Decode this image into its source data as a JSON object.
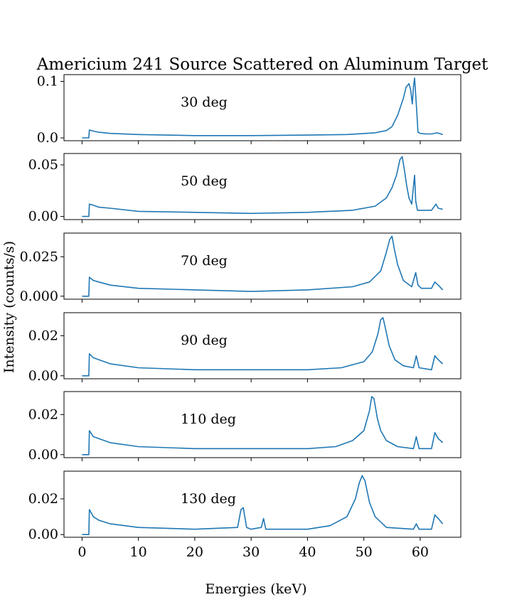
{
  "figure": {
    "title": "Americium 241 Source Scattered on Aluminum Target",
    "xlabel": "Energies (keV)",
    "ylabel": "Intensity (counts/s)",
    "line_color": "#1f77b4"
  },
  "chart_data": [
    {
      "type": "line",
      "annotation": "30 deg",
      "xlim": [
        -3.2,
        67.2
      ],
      "ylim": [
        -0.005,
        0.112
      ],
      "xticks": [
        0,
        10,
        20,
        30,
        40,
        50,
        60
      ],
      "yticks": [
        0.0,
        0.1
      ],
      "ytick_labels": [
        "0.0",
        "0.1"
      ],
      "show_xtick_labels": false,
      "x": [
        0,
        1.2,
        1.3,
        2,
        3,
        5,
        10,
        20,
        30,
        40,
        47,
        52,
        54,
        55,
        56,
        57,
        57.5,
        58,
        58.3,
        58.6,
        58.8,
        59.0,
        59.3,
        59.6,
        60,
        61,
        62,
        63,
        64
      ],
      "y": [
        0,
        0,
        0.014,
        0.012,
        0.01,
        0.008,
        0.006,
        0.004,
        0.004,
        0.005,
        0.006,
        0.009,
        0.013,
        0.02,
        0.04,
        0.07,
        0.09,
        0.096,
        0.085,
        0.06,
        0.09,
        0.106,
        0.06,
        0.01,
        0.008,
        0.007,
        0.007,
        0.009,
        0.006
      ]
    },
    {
      "type": "line",
      "annotation": "50 deg",
      "xlim": [
        -3.2,
        67.2
      ],
      "ylim": [
        -0.003,
        0.061
      ],
      "xticks": [
        0,
        10,
        20,
        30,
        40,
        50,
        60
      ],
      "yticks": [
        0.0,
        0.05
      ],
      "ytick_labels": [
        "0.00",
        "0.05"
      ],
      "show_xtick_labels": false,
      "x": [
        0,
        1.2,
        1.3,
        2,
        3,
        5,
        10,
        20,
        30,
        40,
        48,
        52,
        54,
        55,
        55.8,
        56.4,
        56.8,
        57.2,
        57.6,
        58,
        58.5,
        59.0,
        59.2,
        59.5,
        60,
        62,
        62.8,
        63.2,
        64
      ],
      "y": [
        0,
        0,
        0.012,
        0.011,
        0.009,
        0.008,
        0.005,
        0.004,
        0.003,
        0.004,
        0.006,
        0.01,
        0.018,
        0.028,
        0.04,
        0.055,
        0.058,
        0.045,
        0.03,
        0.018,
        0.012,
        0.04,
        0.015,
        0.006,
        0.006,
        0.006,
        0.012,
        0.008,
        0.007
      ]
    },
    {
      "type": "line",
      "annotation": "70 deg",
      "xlim": [
        -3.2,
        67.2
      ],
      "ylim": [
        -0.0019,
        0.04
      ],
      "xticks": [
        0,
        10,
        20,
        30,
        40,
        50,
        60
      ],
      "yticks": [
        0.0,
        0.025
      ],
      "ytick_labels": [
        "0.000",
        "0.025"
      ],
      "show_xtick_labels": false,
      "x": [
        0,
        1.2,
        1.3,
        2,
        3,
        5,
        10,
        20,
        30,
        40,
        48,
        51,
        53,
        54,
        54.6,
        55.0,
        55.4,
        56,
        57,
        58.5,
        59.2,
        59.6,
        60.2,
        62,
        62.6,
        63.2,
        64
      ],
      "y": [
        0,
        0,
        0.012,
        0.01,
        0.009,
        0.007,
        0.005,
        0.004,
        0.003,
        0.004,
        0.006,
        0.009,
        0.016,
        0.028,
        0.036,
        0.038,
        0.03,
        0.02,
        0.01,
        0.006,
        0.015,
        0.007,
        0.005,
        0.005,
        0.009,
        0.007,
        0.004
      ]
    },
    {
      "type": "line",
      "annotation": "90 deg",
      "xlim": [
        -3.2,
        67.2
      ],
      "ylim": [
        -0.0015,
        0.0315
      ],
      "xticks": [
        0,
        10,
        20,
        30,
        40,
        50,
        60
      ],
      "yticks": [
        0.0,
        0.02
      ],
      "ytick_labels": [
        "0.00",
        "0.02"
      ],
      "show_xtick_labels": false,
      "x": [
        0,
        1.2,
        1.3,
        2,
        3,
        5,
        10,
        20,
        30,
        40,
        46,
        50,
        51.5,
        52.5,
        53.0,
        53.4,
        53.8,
        54.5,
        55.5,
        57,
        58.8,
        59.3,
        59.8,
        62,
        62.6,
        63.2,
        64
      ],
      "y": [
        0,
        0,
        0.011,
        0.009,
        0.008,
        0.006,
        0.004,
        0.003,
        0.003,
        0.003,
        0.004,
        0.007,
        0.012,
        0.021,
        0.028,
        0.029,
        0.024,
        0.015,
        0.008,
        0.005,
        0.004,
        0.01,
        0.004,
        0.003,
        0.01,
        0.008,
        0.006
      ]
    },
    {
      "type": "line",
      "annotation": "110 deg",
      "xlim": [
        -3.2,
        67.2
      ],
      "ylim": [
        -0.0015,
        0.0315
      ],
      "xticks": [
        0,
        10,
        20,
        30,
        40,
        50,
        60
      ],
      "yticks": [
        0.0,
        0.02
      ],
      "ytick_labels": [
        "0.00",
        "0.02"
      ],
      "show_xtick_labels": false,
      "x": [
        0,
        1.2,
        1.3,
        2,
        3,
        5,
        10,
        20,
        30,
        40,
        45,
        48,
        50,
        51,
        51.4,
        51.8,
        52.4,
        53,
        54,
        56,
        58.8,
        59.3,
        59.8,
        62,
        62.6,
        63.2,
        64
      ],
      "y": [
        0,
        0,
        0.012,
        0.009,
        0.008,
        0.006,
        0.004,
        0.003,
        0.003,
        0.003,
        0.004,
        0.007,
        0.012,
        0.022,
        0.029,
        0.028,
        0.018,
        0.012,
        0.007,
        0.004,
        0.003,
        0.009,
        0.003,
        0.003,
        0.011,
        0.008,
        0.006
      ]
    },
    {
      "type": "line",
      "annotation": "130 deg",
      "xlim": [
        -3.2,
        67.2
      ],
      "ylim": [
        -0.0015,
        0.0355
      ],
      "xticks": [
        0,
        10,
        20,
        30,
        40,
        50,
        60
      ],
      "xtick_labels": [
        "0",
        "10",
        "20",
        "30",
        "40",
        "50",
        "60"
      ],
      "yticks": [
        0.0,
        0.02
      ],
      "ytick_labels": [
        "0.00",
        "0.02"
      ],
      "show_xtick_labels": true,
      "x": [
        0,
        1.2,
        1.3,
        2,
        3,
        5,
        10,
        20,
        27.6,
        28.2,
        28.6,
        29.2,
        30,
        31.8,
        32.2,
        32.6,
        40,
        44,
        47,
        48.5,
        49.2,
        49.7,
        50.2,
        51,
        52,
        54,
        58.8,
        59.3,
        59.8,
        62,
        62.6,
        63.2,
        64
      ],
      "y": [
        0,
        0,
        0.014,
        0.01,
        0.008,
        0.006,
        0.004,
        0.003,
        0.004,
        0.014,
        0.015,
        0.004,
        0.003,
        0.004,
        0.009,
        0.003,
        0.003,
        0.005,
        0.01,
        0.02,
        0.029,
        0.033,
        0.03,
        0.018,
        0.01,
        0.004,
        0.003,
        0.006,
        0.003,
        0.003,
        0.011,
        0.009,
        0.006
      ]
    }
  ]
}
